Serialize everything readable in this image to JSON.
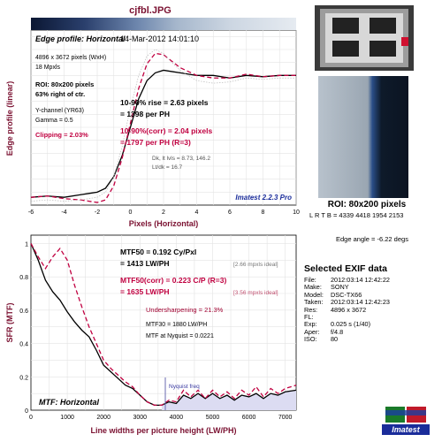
{
  "file_title": "cjfbl.JPG",
  "top_chart": {
    "panel_title": "Edge profile: Horizontal",
    "date": "14-Mar-2012 14:01:10",
    "dims": "4896 x 3672 pixels (WxH)",
    "mpxls": "18 Mpxls",
    "roi": "ROI: 80x200 pixels",
    "right_of_ctr": "63% right of ctr.",
    "channel": "Y-channel (YR63)",
    "gamma": "Gamma = 0.5",
    "clipping": "Clipping = 2.03%",
    "rise": "10-90% rise = 2.63 pixels",
    "rise_ph": "= 1398 per PH",
    "rise_corr": "10-90%(corr) = 2.04 pixels",
    "rise_corr_ph": "= 1797 per PH  (R=3)",
    "dk_lt": "Dk, lt lvls = 8.73, 146.2",
    "lt_dk": "Lt/dk = 16.7",
    "imatest": "Imatest 2.2.3 Pro",
    "ylabel": "Edge profile (linear)",
    "xlabel": "Pixels (Horizontal)",
    "xticks": [
      "-6",
      "-4",
      "-2",
      "0",
      "2",
      "4",
      "6",
      "8",
      "10"
    ]
  },
  "bottom_chart": {
    "mtf50": "MTF50 = 0.192 Cy/Pxl",
    "mtf50_lw": "= 1413 LW/PH",
    "mtf50_ideal": "[2.66 mpxls ideal]",
    "mtf50corr": "MTF50(corr) = 0.223 C/P  (R=3)",
    "mtf50corr_lw": "= 1635 LW/PH",
    "mtf50corr_ideal": "[3.56 mpxls ideal]",
    "undersharp": "Undersharpening = 21.3%",
    "mtf30": "MTF30 = 1880 LW/PH",
    "nyq": "MTF at Nyquist = 0.0221",
    "nyq_freq": "Nyquist freq",
    "panel_title": "MTF: Horizontal",
    "ylabel": "SFR (MTF)",
    "xlabel": "Line widths per picture height (LW/PH)",
    "xticks": [
      "0",
      "1000",
      "2000",
      "3000",
      "4000",
      "5000",
      "6000",
      "7000"
    ],
    "yticks": [
      "0",
      "0.2",
      "0.4",
      "0.6",
      "0.8",
      "1"
    ]
  },
  "side": {
    "roi_label": "ROI: 80x200 pixels",
    "lrtb": "L R T B = 4339 4418  1954 2153",
    "edge_angle": "Edge angle = -6.22 degs",
    "exif_title": "Selected EXIF data",
    "exif": [
      {
        "k": "File:",
        "v": "2012:03:14 12:42:22"
      },
      {
        "k": "Make:",
        "v": "SONY"
      },
      {
        "k": "Model:",
        "v": "DSC-TX66"
      },
      {
        "k": "Taken:",
        "v": "2012:03:14 12:42:23"
      },
      {
        "k": "Res:",
        "v": "4896 x 3672"
      },
      {
        "k": "FL:",
        "v": ""
      },
      {
        "k": "Exp:",
        "v": "0.025 s  (1/40)"
      },
      {
        "k": "Aper:",
        "v": "f/4.8"
      },
      {
        "k": "ISO:",
        "v": "80"
      }
    ],
    "logo_text": "Imatest"
  },
  "chart_data": [
    {
      "type": "line",
      "title": "Edge profile: Horizontal",
      "xlabel": "Pixels (Horizontal)",
      "ylabel": "Edge profile (linear)",
      "xlim": [
        -6,
        10
      ],
      "ylim": [
        0,
        1.35
      ],
      "grid": true,
      "series": [
        {
          "color": "#000000",
          "x": [
            -6,
            -5,
            -4,
            -3,
            -2.5,
            -2,
            -1.5,
            -1,
            -0.5,
            0,
            0.5,
            1,
            1.5,
            2,
            2.5,
            3,
            4,
            5,
            6,
            7,
            8,
            9,
            10
          ],
          "y": [
            0.06,
            0.07,
            0.06,
            0.08,
            0.09,
            0.1,
            0.13,
            0.22,
            0.38,
            0.6,
            0.82,
            0.96,
            1.02,
            1.04,
            1.03,
            1.02,
            1.0,
            1.0,
            0.98,
            1.0,
            0.99,
            1.0,
            1.0
          ]
        },
        {
          "color": "#c00040",
          "x": [
            -6,
            -5,
            -4,
            -3,
            -2.5,
            -2,
            -1.5,
            -1,
            -0.5,
            0,
            0.5,
            1,
            1.5,
            2,
            2.5,
            3,
            4,
            5,
            6,
            7,
            8,
            9,
            10
          ],
          "y": [
            0.06,
            0.07,
            0.05,
            0.04,
            0.03,
            0.02,
            0.04,
            0.15,
            0.36,
            0.63,
            0.9,
            1.09,
            1.17,
            1.16,
            1.11,
            1.06,
            1.0,
            0.98,
            0.98,
            1.01,
            0.99,
            1.0,
            1.0
          ]
        },
        {
          "color": "#bbbbbb",
          "x": [
            -6,
            -5,
            -4,
            -3,
            -2.5,
            -2,
            -1.5,
            -1,
            -0.5,
            0,
            0.5,
            1,
            1.5,
            2,
            2.5,
            3,
            4,
            5,
            6,
            7,
            8,
            9,
            10
          ],
          "y": [
            0.03,
            0.04,
            0.03,
            0.04,
            0.05,
            0.06,
            0.1,
            0.22,
            0.45,
            0.75,
            1.0,
            1.15,
            1.2,
            1.17,
            1.1,
            1.04,
            0.96,
            0.94,
            0.95,
            0.98,
            0.97,
            0.98,
            0.98
          ]
        }
      ]
    },
    {
      "type": "line",
      "title": "MTF: Horizontal",
      "xlabel": "Line widths per picture height (LW/PH)",
      "ylabel": "SFR (MTF)",
      "xlim": [
        0,
        7300
      ],
      "ylim": [
        0,
        1.05
      ],
      "grid": true,
      "series": [
        {
          "color": "#000000",
          "x": [
            0,
            200,
            400,
            600,
            800,
            1000,
            1200,
            1400,
            1600,
            1800,
            2000,
            2200,
            2400,
            2600,
            2800,
            3000,
            3200,
            3400,
            3600,
            3800,
            4000,
            4200,
            4400,
            4600,
            4800,
            5000,
            5200,
            5400,
            5600,
            5800,
            6000,
            6200,
            6400,
            6600,
            6800,
            7000,
            7300
          ],
          "y": [
            1.0,
            0.9,
            0.78,
            0.71,
            0.66,
            0.59,
            0.53,
            0.48,
            0.44,
            0.36,
            0.27,
            0.23,
            0.19,
            0.15,
            0.13,
            0.09,
            0.05,
            0.03,
            0.03,
            0.05,
            0.04,
            0.09,
            0.07,
            0.1,
            0.07,
            0.1,
            0.07,
            0.09,
            0.06,
            0.09,
            0.08,
            0.1,
            0.07,
            0.1,
            0.09,
            0.11,
            0.12
          ]
        },
        {
          "color": "#c00040",
          "x": [
            0,
            200,
            400,
            600,
            800,
            1000,
            1200,
            1400,
            1600,
            1800,
            2000,
            2200,
            2400,
            2600,
            2800,
            3000,
            3200,
            3400,
            3600,
            3800,
            4000,
            4200,
            4400,
            4600,
            4800,
            5000,
            5200,
            5400,
            5600,
            5800,
            6000,
            6200,
            6400,
            6600,
            6800,
            7000,
            7300
          ],
          "y": [
            1.0,
            0.92,
            0.85,
            0.92,
            0.97,
            0.9,
            0.75,
            0.62,
            0.5,
            0.4,
            0.3,
            0.25,
            0.21,
            0.17,
            0.14,
            0.09,
            0.05,
            0.03,
            0.03,
            0.06,
            0.05,
            0.12,
            0.08,
            0.12,
            0.07,
            0.12,
            0.08,
            0.11,
            0.07,
            0.12,
            0.09,
            0.14,
            0.08,
            0.13,
            0.1,
            0.13,
            0.15
          ]
        }
      ]
    }
  ]
}
